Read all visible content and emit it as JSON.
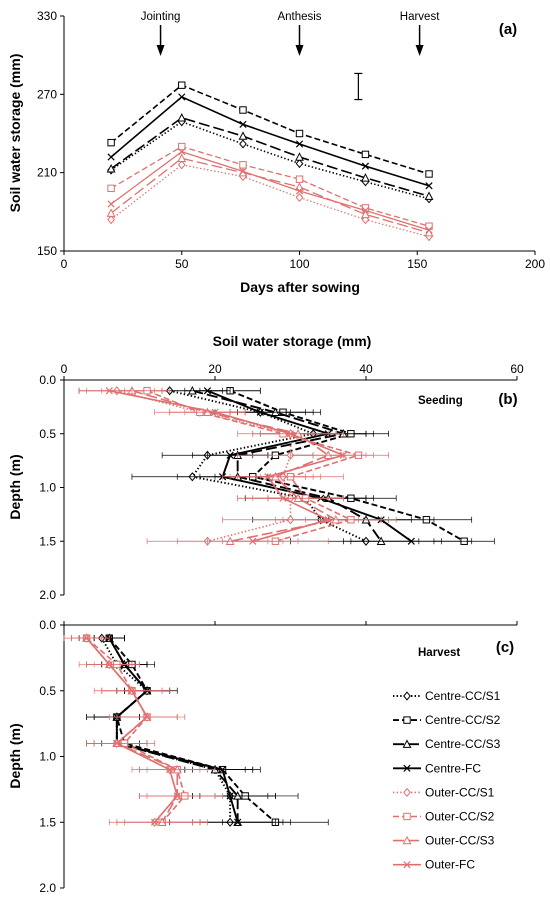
{
  "chart_data": [
    {
      "panel": "(a)",
      "type": "line",
      "xlabel": "Days after sowing",
      "ylabel": "Soil water storage (mm)",
      "xlim": [
        0,
        200
      ],
      "ylim": [
        150,
        330
      ],
      "x_ticks": [
        "0",
        "50",
        "100",
        "150",
        "200"
      ],
      "y_ticks": [
        "150",
        "210",
        "270",
        "330"
      ],
      "x": [
        20,
        50,
        76,
        100,
        128,
        155
      ],
      "events": [
        {
          "label": "Jointing",
          "x": 41
        },
        {
          "label": "Anthesis",
          "x": 100
        },
        {
          "label": "Harvest",
          "x": 151
        }
      ],
      "error_bar": {
        "x": 125,
        "low": 266,
        "high": 286
      },
      "series": [
        {
          "name": "Centre-CC/S1",
          "values": [
            212,
            249,
            232,
            217,
            203,
            190
          ]
        },
        {
          "name": "Centre-CC/S2",
          "values": [
            233,
            277,
            258,
            240,
            224,
            209
          ]
        },
        {
          "name": "Centre-CC/S3",
          "values": [
            213,
            252,
            238,
            222,
            206,
            192
          ]
        },
        {
          "name": "Centre-FC",
          "values": [
            222,
            268,
            247,
            232,
            215,
            200
          ]
        },
        {
          "name": "Outer-CC/S1",
          "values": [
            174,
            216,
            207,
            191,
            174,
            161
          ]
        },
        {
          "name": "Outer-CC/S2",
          "values": [
            198,
            230,
            216,
            205,
            183,
            169
          ]
        },
        {
          "name": "Outer-CC/S3",
          "values": [
            179,
            221,
            210,
            199,
            178,
            164
          ]
        },
        {
          "name": "Outer-FC",
          "values": [
            186,
            226,
            211,
            196,
            181,
            166
          ]
        }
      ]
    },
    {
      "panel": "(b)",
      "type": "line",
      "annotation": "Seeding",
      "xlabel": "Soil water storage (mm)",
      "ylabel": "Depth (m)",
      "xlim": [
        0,
        60
      ],
      "ylim": [
        0,
        2
      ],
      "x_ticks": [
        "0",
        "20",
        "40",
        "60"
      ],
      "y_ticks": [
        "0.0",
        "0.5",
        "1.0",
        "1.5",
        "2.0"
      ],
      "depth": [
        0.1,
        0.3,
        0.5,
        0.7,
        0.9,
        1.1,
        1.3,
        1.5
      ],
      "series": [
        {
          "name": "Centre-CC/S1",
          "values": [
            14,
            26,
            33,
            19,
            17,
            32,
            34,
            40
          ],
          "err": [
            12,
            6,
            7,
            6,
            8,
            8,
            9,
            10
          ]
        },
        {
          "name": "Centre-CC/S2",
          "values": [
            22,
            29,
            38,
            28,
            25,
            38,
            48,
            53
          ],
          "err": [
            4,
            5,
            5,
            5,
            5,
            6,
            6,
            4
          ]
        },
        {
          "name": "Centre-CC/S3",
          "values": [
            17,
            28,
            37,
            23,
            23,
            35,
            40,
            42
          ],
          "err": [
            4,
            5,
            4,
            4,
            5,
            5,
            6,
            5
          ]
        },
        {
          "name": "Centre-FC",
          "values": [
            19,
            26,
            35,
            22,
            21,
            34,
            42,
            46
          ],
          "err": [
            3,
            4,
            5,
            5,
            6,
            7,
            7,
            8
          ]
        },
        {
          "name": "Outer-CC/S1",
          "values": [
            7,
            18,
            30,
            30,
            29,
            30,
            30,
            19
          ],
          "err": [
            5,
            6,
            7,
            7,
            8,
            7,
            9,
            8
          ]
        },
        {
          "name": "Outer-CC/S2",
          "values": [
            11,
            18,
            29,
            39,
            30,
            32,
            38,
            28
          ],
          "err": [
            3,
            4,
            4,
            4,
            4,
            5,
            6,
            7
          ]
        },
        {
          "name": "Outer-CC/S3",
          "values": [
            9,
            19,
            31,
            35,
            28,
            31,
            36,
            22
          ],
          "err": [
            4,
            5,
            5,
            5,
            5,
            6,
            7,
            7
          ]
        },
        {
          "name": "Outer-FC",
          "values": [
            6,
            20,
            30,
            37,
            27,
            29,
            35,
            25
          ],
          "err": [
            3,
            4,
            5,
            4,
            5,
            6,
            7,
            6
          ]
        }
      ]
    },
    {
      "panel": "(c)",
      "type": "line",
      "annotation": "Harvest",
      "ylabel": "Depth (m)",
      "xlim": [
        0,
        60
      ],
      "ylim": [
        0,
        2
      ],
      "y_ticks": [
        "0.0",
        "0.5",
        "1.0",
        "1.5",
        "2.0"
      ],
      "depth": [
        0.1,
        0.3,
        0.5,
        0.7,
        0.9,
        1.1,
        1.3,
        1.5
      ],
      "series": [
        {
          "name": "Centre-CC/S1",
          "values": [
            5,
            7,
            11,
            7,
            7,
            20,
            22,
            22
          ],
          "err": [
            3,
            4,
            3,
            4,
            4,
            5,
            6,
            8
          ]
        },
        {
          "name": "Centre-CC/S2",
          "values": [
            6,
            9,
            11,
            7,
            8,
            21,
            24,
            28
          ],
          "err": [
            2,
            3,
            4,
            4,
            3,
            5,
            7,
            7
          ]
        },
        {
          "name": "Centre-CC/S3",
          "values": [
            6,
            8,
            11,
            7,
            7,
            20,
            23,
            23
          ],
          "err": [
            2,
            3,
            3,
            3,
            3,
            4,
            5,
            5
          ]
        },
        {
          "name": "Centre-FC",
          "values": [
            6,
            8,
            11,
            7,
            7,
            21,
            22,
            23
          ],
          "err": [
            2,
            3,
            3,
            3,
            4,
            4,
            5,
            6
          ]
        },
        {
          "name": "Outer-CC/S1",
          "values": [
            3,
            6,
            9,
            11,
            7,
            14,
            15,
            12
          ],
          "err": [
            3,
            4,
            5,
            5,
            4,
            5,
            5,
            6
          ]
        },
        {
          "name": "Outer-CC/S2",
          "values": [
            3,
            7,
            9,
            11,
            8,
            15,
            16,
            13
          ],
          "err": [
            2,
            3,
            4,
            4,
            4,
            5,
            5,
            6
          ]
        },
        {
          "name": "Outer-CC/S3",
          "values": [
            3,
            6,
            9,
            11,
            7,
            15,
            15,
            13
          ],
          "err": [
            2,
            3,
            4,
            4,
            4,
            4,
            5,
            5
          ]
        },
        {
          "name": "Outer-FC",
          "values": [
            3,
            6,
            9,
            11,
            7,
            14,
            15,
            12
          ],
          "err": [
            2,
            3,
            4,
            4,
            4,
            4,
            5,
            5
          ]
        }
      ]
    }
  ],
  "styles": {
    "centre_color": "#000000",
    "outer_color": "#e07070",
    "grid": false,
    "legend_placement": "bottom-right",
    "line_styles": {
      "Centre-CC/S1": {
        "dash": "dotted",
        "marker": "diamond-icon"
      },
      "Centre-CC/S2": {
        "dash": "dashed",
        "marker": "square-icon"
      },
      "Centre-CC/S3": {
        "dash": "long-dashed",
        "marker": "triangle-icon"
      },
      "Centre-FC": {
        "dash": "solid",
        "marker": "cross-icon"
      },
      "Outer-CC/S1": {
        "dash": "dotted",
        "marker": "diamond-icon"
      },
      "Outer-CC/S2": {
        "dash": "dashed",
        "marker": "square-icon"
      },
      "Outer-CC/S3": {
        "dash": "long-dashed",
        "marker": "triangle-icon"
      },
      "Outer-FC": {
        "dash": "solid",
        "marker": "cross-icon"
      }
    }
  }
}
